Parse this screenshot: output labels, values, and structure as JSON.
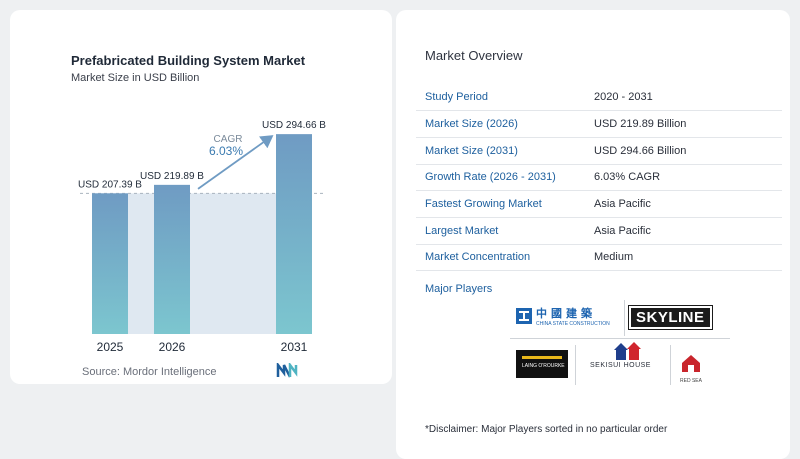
{
  "chart": {
    "title": "Prefabricated Building System Market",
    "subtitle": "Market Size in USD Billion",
    "source": "Source: Mordor Intelligence",
    "cagr_label": "CAGR",
    "cagr_value": "6.03%"
  },
  "chart_data": {
    "type": "bar",
    "categories": [
      "2025",
      "2026",
      "2031"
    ],
    "values": [
      207.39,
      219.89,
      294.66
    ],
    "value_labels": [
      "USD 207.39 B",
      "USD 219.89 B",
      "USD 294.66 B"
    ],
    "title": "Prefabricated Building System Market",
    "subtitle": "Market Size in USD Billion",
    "xlabel": "",
    "ylabel": "",
    "grid": false,
    "annotations": [
      "CAGR",
      "6.03%"
    ]
  },
  "overview": {
    "title": "Market Overview",
    "rows": [
      {
        "key": "Study Period",
        "value": "2020 - 2031"
      },
      {
        "key": "Market Size (2026)",
        "value": "USD 219.89 Billion"
      },
      {
        "key": "Market Size (2031)",
        "value": "USD 294.66 Billion"
      },
      {
        "key": "Growth Rate (2026 - 2031)",
        "value": "6.03% CAGR"
      },
      {
        "key": "Fastest Growing Market",
        "value": "Asia Pacific"
      },
      {
        "key": "Largest Market",
        "value": "Asia Pacific"
      },
      {
        "key": "Market Concentration",
        "value": "Medium"
      }
    ],
    "players_title": "Major Players",
    "players": {
      "cscec_chars": "中國建築",
      "cscec": "CHINA STATE CONSTRUCTION",
      "skyline": "SKYLINE",
      "laing": "LAING O'ROURKE",
      "sekisui": "SEKISUI HOUSE",
      "redsea": "RED SEA"
    },
    "disclaimer": "*Disclaimer: Major Players sorted in no particular order"
  },
  "colors": {
    "bar_top": "#6f9bc3",
    "bar_bottom": "#7cc6cf",
    "shade": "#dfe8f1",
    "arrow": "#6f9bc3",
    "key_text": "#1d5f9e"
  }
}
